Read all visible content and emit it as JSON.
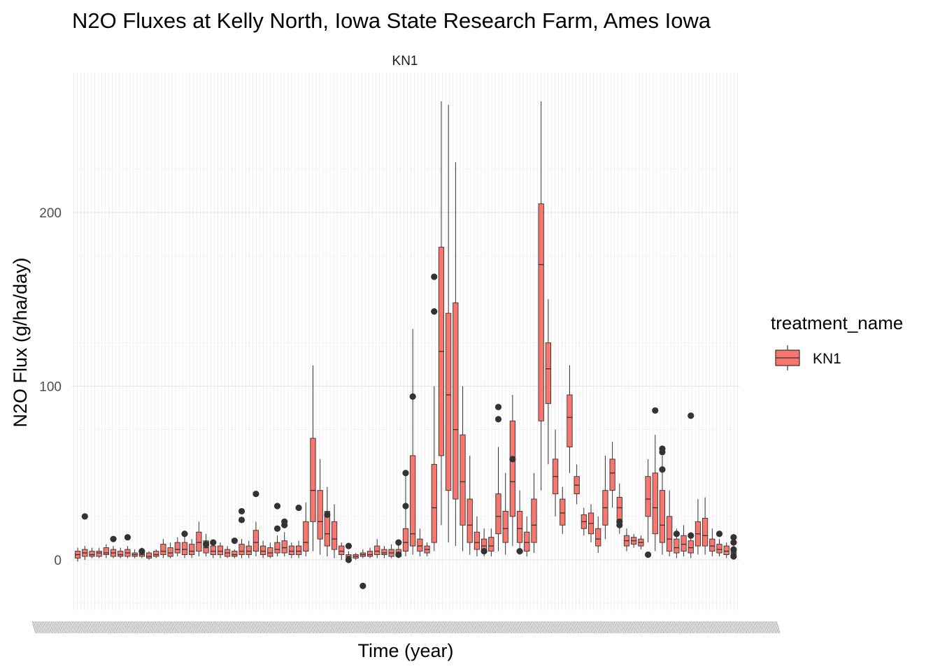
{
  "chart_data": {
    "type": "box",
    "title": "N2O Fluxes at Kelly North, Iowa State Research Farm, Ames Iowa",
    "facet": "KN1",
    "xlabel": "Time (year)",
    "ylabel": "N2O Flux (g/ha/day)",
    "x_tick_labels_legible": false,
    "ylim": [
      -28,
      268
    ],
    "yticks": [
      0,
      100,
      200
    ],
    "grid": true,
    "fill_color": "#F8766D",
    "outline_color": "#333333",
    "legend": {
      "title": "treatment_name",
      "entries": [
        "KN1"
      ],
      "placement": "right"
    },
    "boxes": [
      {
        "q1": 1,
        "med": 3,
        "q3": 5,
        "lo": -1,
        "hi": 7,
        "out": []
      },
      {
        "q1": 2,
        "med": 4,
        "q3": 6,
        "lo": 0,
        "hi": 8,
        "out": [
          25
        ]
      },
      {
        "q1": 2,
        "med": 3,
        "q3": 5,
        "lo": 1,
        "hi": 7,
        "out": []
      },
      {
        "q1": 2,
        "med": 4,
        "q3": 5,
        "lo": 1,
        "hi": 7,
        "out": []
      },
      {
        "q1": 3,
        "med": 4,
        "q3": 7,
        "lo": 1,
        "hi": 9,
        "out": []
      },
      {
        "q1": 2,
        "med": 4,
        "q3": 6,
        "lo": 1,
        "hi": 8,
        "out": [
          12
        ]
      },
      {
        "q1": 2,
        "med": 3,
        "q3": 5,
        "lo": 1,
        "hi": 7,
        "out": []
      },
      {
        "q1": 2,
        "med": 4,
        "q3": 6,
        "lo": 1,
        "hi": 8,
        "out": [
          13
        ]
      },
      {
        "q1": 2,
        "med": 3,
        "q3": 4,
        "lo": 1,
        "hi": 6,
        "out": []
      },
      {
        "q1": 2,
        "med": 3,
        "q3": 5,
        "lo": 1,
        "hi": 7,
        "out": [
          5
        ]
      },
      {
        "q1": 1,
        "med": 2,
        "q3": 4,
        "lo": 0,
        "hi": 5,
        "out": []
      },
      {
        "q1": 2,
        "med": 3,
        "q3": 5,
        "lo": 1,
        "hi": 6,
        "out": []
      },
      {
        "q1": 3,
        "med": 5,
        "q3": 9,
        "lo": 1,
        "hi": 12,
        "out": []
      },
      {
        "q1": 2,
        "med": 4,
        "q3": 7,
        "lo": 1,
        "hi": 10,
        "out": []
      },
      {
        "q1": 4,
        "med": 6,
        "q3": 10,
        "lo": 2,
        "hi": 13,
        "out": []
      },
      {
        "q1": 3,
        "med": 6,
        "q3": 10,
        "lo": 1,
        "hi": 14,
        "out": [
          15
        ]
      },
      {
        "q1": 3,
        "med": 5,
        "q3": 9,
        "lo": 1,
        "hi": 12,
        "out": []
      },
      {
        "q1": 5,
        "med": 10,
        "q3": 16,
        "lo": 2,
        "hi": 22,
        "out": []
      },
      {
        "q1": 4,
        "med": 7,
        "q3": 11,
        "lo": 2,
        "hi": 15,
        "out": [
          9
        ]
      },
      {
        "q1": 3,
        "med": 5,
        "q3": 8,
        "lo": 1,
        "hi": 11,
        "out": [
          10
        ]
      },
      {
        "q1": 3,
        "med": 5,
        "q3": 8,
        "lo": 1,
        "hi": 10,
        "out": []
      },
      {
        "q1": 2,
        "med": 4,
        "q3": 6,
        "lo": 1,
        "hi": 8,
        "out": []
      },
      {
        "q1": 2,
        "med": 3,
        "q3": 5,
        "lo": 1,
        "hi": 6,
        "out": [
          11
        ]
      },
      {
        "q1": 3,
        "med": 5,
        "q3": 9,
        "lo": 1,
        "hi": 12,
        "out": [
          28,
          23
        ]
      },
      {
        "q1": 3,
        "med": 5,
        "q3": 8,
        "lo": 1,
        "hi": 11,
        "out": []
      },
      {
        "q1": 5,
        "med": 10,
        "q3": 17,
        "lo": 2,
        "hi": 22,
        "out": [
          38
        ]
      },
      {
        "q1": 3,
        "med": 5,
        "q3": 8,
        "lo": 1,
        "hi": 11,
        "out": []
      },
      {
        "q1": 2,
        "med": 4,
        "q3": 7,
        "lo": 1,
        "hi": 10,
        "out": []
      },
      {
        "q1": 4,
        "med": 6,
        "q3": 10,
        "lo": 2,
        "hi": 14,
        "out": [
          31,
          18
        ]
      },
      {
        "q1": 4,
        "med": 7,
        "q3": 11,
        "lo": 2,
        "hi": 16,
        "out": [
          22,
          20
        ]
      },
      {
        "q1": 3,
        "med": 5,
        "q3": 8,
        "lo": 1,
        "hi": 10,
        "out": []
      },
      {
        "q1": 3,
        "med": 5,
        "q3": 8,
        "lo": 1,
        "hi": 11,
        "out": [
          30
        ]
      },
      {
        "q1": 5,
        "med": 10,
        "q3": 22,
        "lo": 2,
        "hi": 33,
        "out": []
      },
      {
        "q1": 22,
        "med": 40,
        "q3": 70,
        "lo": 5,
        "hi": 112,
        "out": []
      },
      {
        "q1": 12,
        "med": 22,
        "q3": 40,
        "lo": 3,
        "hi": 58,
        "out": []
      },
      {
        "q1": 8,
        "med": 15,
        "q3": 28,
        "lo": 2,
        "hi": 42,
        "out": [
          26
        ]
      },
      {
        "q1": 6,
        "med": 12,
        "q3": 22,
        "lo": 1,
        "hi": 32,
        "out": []
      },
      {
        "q1": 3,
        "med": 5,
        "q3": 8,
        "lo": 0,
        "hi": 10,
        "out": []
      },
      {
        "q1": 1,
        "med": 2,
        "q3": 3,
        "lo": 0,
        "hi": 5,
        "out": [
          8,
          0
        ]
      },
      {
        "q1": 1,
        "med": 2,
        "q3": 3,
        "lo": 0,
        "hi": 4,
        "out": []
      },
      {
        "q1": 2,
        "med": 3,
        "q3": 4,
        "lo": 1,
        "hi": 6,
        "out": [
          -15
        ]
      },
      {
        "q1": 2,
        "med": 3,
        "q3": 5,
        "lo": 1,
        "hi": 7,
        "out": []
      },
      {
        "q1": 3,
        "med": 5,
        "q3": 8,
        "lo": 1,
        "hi": 12,
        "out": []
      },
      {
        "q1": 3,
        "med": 4,
        "q3": 6,
        "lo": 1,
        "hi": 8,
        "out": []
      },
      {
        "q1": 2,
        "med": 4,
        "q3": 6,
        "lo": 1,
        "hi": 9,
        "out": []
      },
      {
        "q1": 2,
        "med": 4,
        "q3": 6,
        "lo": 1,
        "hi": 9,
        "out": [
          10,
          3
        ]
      },
      {
        "q1": 5,
        "med": 10,
        "q3": 18,
        "lo": 2,
        "hi": 50,
        "out": [
          50,
          31
        ]
      },
      {
        "q1": 8,
        "med": 15,
        "q3": 60,
        "lo": 3,
        "hi": 133,
        "out": [
          94
        ]
      },
      {
        "q1": 5,
        "med": 8,
        "q3": 12,
        "lo": 2,
        "hi": 18,
        "out": []
      },
      {
        "q1": 4,
        "med": 6,
        "q3": 8,
        "lo": 2,
        "hi": 10,
        "out": []
      },
      {
        "q1": 10,
        "med": 30,
        "q3": 55,
        "lo": 5,
        "hi": 100,
        "out": [
          163,
          143
        ]
      },
      {
        "q1": 60,
        "med": 120,
        "q3": 180,
        "lo": 20,
        "hi": 264,
        "out": []
      },
      {
        "q1": 40,
        "med": 95,
        "q3": 142,
        "lo": 10,
        "hi": 262,
        "out": []
      },
      {
        "q1": 35,
        "med": 75,
        "q3": 148,
        "lo": 8,
        "hi": 229,
        "out": []
      },
      {
        "q1": 20,
        "med": 45,
        "q3": 72,
        "lo": 5,
        "hi": 100,
        "out": []
      },
      {
        "q1": 10,
        "med": 20,
        "q3": 35,
        "lo": 3,
        "hi": 60,
        "out": []
      },
      {
        "q1": 6,
        "med": 10,
        "q3": 16,
        "lo": 2,
        "hi": 25,
        "out": []
      },
      {
        "q1": 5,
        "med": 8,
        "q3": 12,
        "lo": 2,
        "hi": 18,
        "out": [
          5
        ]
      },
      {
        "q1": 5,
        "med": 8,
        "q3": 13,
        "lo": 2,
        "hi": 18,
        "out": []
      },
      {
        "q1": 15,
        "med": 25,
        "q3": 38,
        "lo": 5,
        "hi": 65,
        "out": [
          88,
          81
        ]
      },
      {
        "q1": 10,
        "med": 18,
        "q3": 28,
        "lo": 3,
        "hi": 50,
        "out": []
      },
      {
        "q1": 25,
        "med": 45,
        "q3": 80,
        "lo": 8,
        "hi": 95,
        "out": [
          58
        ]
      },
      {
        "q1": 10,
        "med": 18,
        "q3": 28,
        "lo": 3,
        "hi": 40,
        "out": [
          5
        ]
      },
      {
        "q1": 5,
        "med": 10,
        "q3": 16,
        "lo": 2,
        "hi": 25,
        "out": []
      },
      {
        "q1": 10,
        "med": 20,
        "q3": 35,
        "lo": 4,
        "hi": 50,
        "out": []
      },
      {
        "q1": 80,
        "med": 170,
        "q3": 205,
        "lo": 40,
        "hi": 264,
        "out": []
      },
      {
        "q1": 90,
        "med": 110,
        "q3": 125,
        "lo": 55,
        "hi": 150,
        "out": []
      },
      {
        "q1": 38,
        "med": 48,
        "q3": 58,
        "lo": 25,
        "hi": 75,
        "out": []
      },
      {
        "q1": 20,
        "med": 27,
        "q3": 35,
        "lo": 15,
        "hi": 42,
        "out": []
      },
      {
        "q1": 65,
        "med": 82,
        "q3": 95,
        "lo": 50,
        "hi": 112,
        "out": []
      },
      {
        "q1": 38,
        "med": 43,
        "q3": 48,
        "lo": 32,
        "hi": 55,
        "out": []
      },
      {
        "q1": 18,
        "med": 22,
        "q3": 26,
        "lo": 14,
        "hi": 30,
        "out": []
      },
      {
        "q1": 15,
        "med": 21,
        "q3": 27,
        "lo": 10,
        "hi": 32,
        "out": []
      },
      {
        "q1": 8,
        "med": 12,
        "q3": 18,
        "lo": 4,
        "hi": 25,
        "out": []
      },
      {
        "q1": 20,
        "med": 30,
        "q3": 40,
        "lo": 12,
        "hi": 60,
        "out": []
      },
      {
        "q1": 40,
        "med": 50,
        "q3": 58,
        "lo": 30,
        "hi": 68,
        "out": []
      },
      {
        "q1": 22,
        "med": 30,
        "q3": 36,
        "lo": 15,
        "hi": 44,
        "out": [
          22,
          20
        ]
      },
      {
        "q1": 8,
        "med": 11,
        "q3": 14,
        "lo": 5,
        "hi": 18,
        "out": []
      },
      {
        "q1": 9,
        "med": 11,
        "q3": 13,
        "lo": 7,
        "hi": 15,
        "out": []
      },
      {
        "q1": 8,
        "med": 10,
        "q3": 12,
        "lo": 6,
        "hi": 14,
        "out": []
      },
      {
        "q1": 25,
        "med": 35,
        "q3": 48,
        "lo": 10,
        "hi": 58,
        "out": [
          3
        ]
      },
      {
        "q1": 15,
        "med": 30,
        "q3": 50,
        "lo": 5,
        "hi": 72,
        "out": [
          86
        ]
      },
      {
        "q1": 10,
        "med": 20,
        "q3": 40,
        "lo": 3,
        "hi": 60,
        "out": [
          64,
          62,
          52
        ]
      },
      {
        "q1": 5,
        "med": 12,
        "q3": 25,
        "lo": 2,
        "hi": 40,
        "out": []
      },
      {
        "q1": 4,
        "med": 7,
        "q3": 12,
        "lo": 1,
        "hi": 18,
        "out": [
          15
        ]
      },
      {
        "q1": 5,
        "med": 9,
        "q3": 14,
        "lo": 2,
        "hi": 20,
        "out": []
      },
      {
        "q1": 4,
        "med": 7,
        "q3": 11,
        "lo": 1,
        "hi": 16,
        "out": [
          14,
          83
        ]
      },
      {
        "q1": 8,
        "med": 15,
        "q3": 22,
        "lo": 3,
        "hi": 35,
        "out": []
      },
      {
        "q1": 8,
        "med": 14,
        "q3": 24,
        "lo": 3,
        "hi": 36,
        "out": []
      },
      {
        "q1": 5,
        "med": 8,
        "q3": 12,
        "lo": 2,
        "hi": 18,
        "out": []
      },
      {
        "q1": 4,
        "med": 6,
        "q3": 9,
        "lo": 2,
        "hi": 12,
        "out": [
          15
        ]
      },
      {
        "q1": 3,
        "med": 5,
        "q3": 8,
        "lo": 1,
        "hi": 10,
        "out": []
      },
      {
        "q1": 2,
        "med": 4,
        "q3": 6,
        "lo": 1,
        "hi": 8,
        "out": [
          13,
          10,
          6,
          2
        ]
      }
    ]
  }
}
